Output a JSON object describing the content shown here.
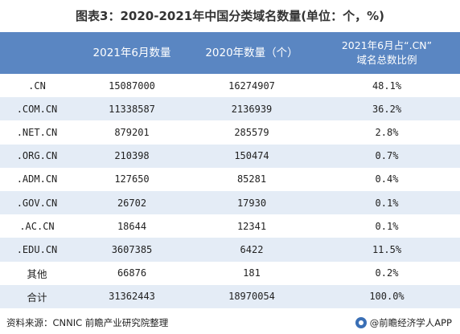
{
  "title": "图表3：2020-2021年中国分类域名数量(单位：个，%)",
  "table": {
    "headers": [
      "",
      "2021年6月数量",
      "2020年数量（个）",
      "2021年6月占“.CN”\n域名总数比例"
    ],
    "rows": [
      {
        "name": ".CN",
        "v2021": "15087000",
        "v2020": "16274907",
        "share": "48.1%"
      },
      {
        "name": ".COM.CN",
        "v2021": "11338587",
        "v2020": "2136939",
        "share": "36.2%"
      },
      {
        "name": ".NET.CN",
        "v2021": "879201",
        "v2020": "285579",
        "share": "2.8%"
      },
      {
        "name": ".ORG.CN",
        "v2021": "210398",
        "v2020": "150474",
        "share": "0.7%"
      },
      {
        "name": ".ADM.CN",
        "v2021": "127650",
        "v2020": "85281",
        "share": "0.4%"
      },
      {
        "name": ".GOV.CN",
        "v2021": "26702",
        "v2020": "17930",
        "share": "0.1%"
      },
      {
        "name": ".AC.CN",
        "v2021": "18644",
        "v2020": "12341",
        "share": "0.1%"
      },
      {
        "name": ".EDU.CN",
        "v2021": "3607385",
        "v2020": "6422",
        "share": "11.5%"
      },
      {
        "name": "其他",
        "v2021": "66876",
        "v2020": "181",
        "share": "0.2%"
      },
      {
        "name": "合计",
        "v2021": "31362443",
        "v2020": "18970054",
        "share": "100.0%"
      }
    ]
  },
  "footer": {
    "source": "资料来源：CNNIC 前瞻产业研究院整理",
    "brand": "@前瞻经济学人APP",
    "brand_icon": "qianzhan-logo-icon"
  }
}
